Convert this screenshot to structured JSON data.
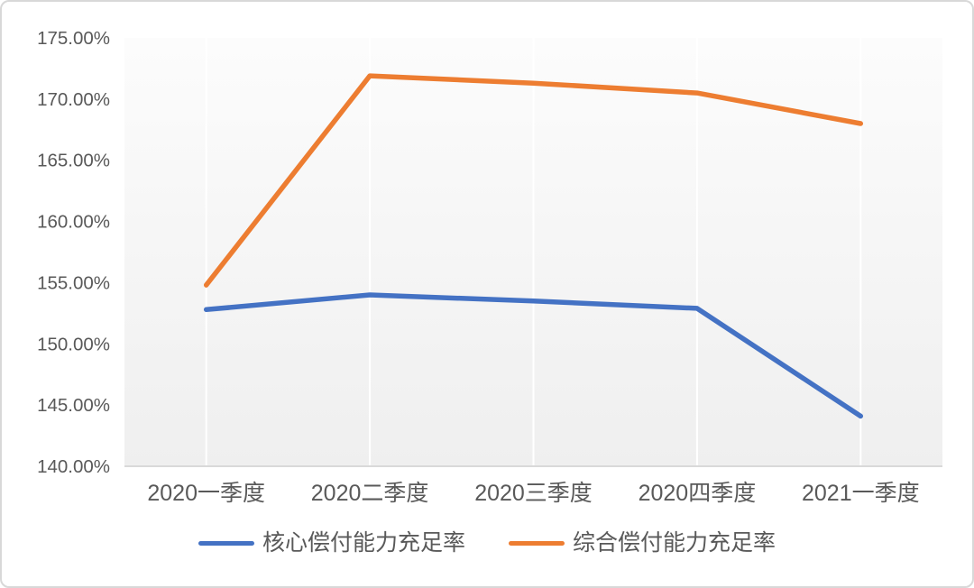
{
  "chart_data": {
    "type": "line",
    "title": "",
    "xlabel": "",
    "ylabel": "",
    "categories": [
      "2020一季度",
      "2020二季度",
      "2020三季度",
      "2020四季度",
      "2021一季度"
    ],
    "series": [
      {
        "name": "核心偿付能力充足率",
        "color": "#4472C4",
        "values": [
          152.8,
          154.0,
          153.5,
          152.9,
          144.1
        ]
      },
      {
        "name": "综合偿付能力充足率",
        "color": "#ED7D31",
        "values": [
          154.8,
          171.9,
          171.3,
          170.5,
          168.0
        ]
      }
    ],
    "ylim": [
      140,
      175
    ],
    "y_tick_step": 5,
    "y_ticks": [
      {
        "value": 175,
        "label": "175.00%"
      },
      {
        "value": 170,
        "label": "170.00%"
      },
      {
        "value": 165,
        "label": "165.00%"
      },
      {
        "value": 160,
        "label": "160.00%"
      },
      {
        "value": 155,
        "label": "155.00%"
      },
      {
        "value": 150,
        "label": "150.00%"
      },
      {
        "value": 145,
        "label": "145.00%"
      },
      {
        "value": 140,
        "label": "140.00%"
      }
    ],
    "grid": "vertical-only",
    "legend_position": "bottom"
  },
  "colors": {
    "text": "#595959",
    "axis_line": "#d9d9d9",
    "gridline": "#ffffff",
    "plot_bg_top": "#fcfcfc",
    "plot_bg_bottom": "#efefef",
    "card_border": "#d8d8d8"
  }
}
